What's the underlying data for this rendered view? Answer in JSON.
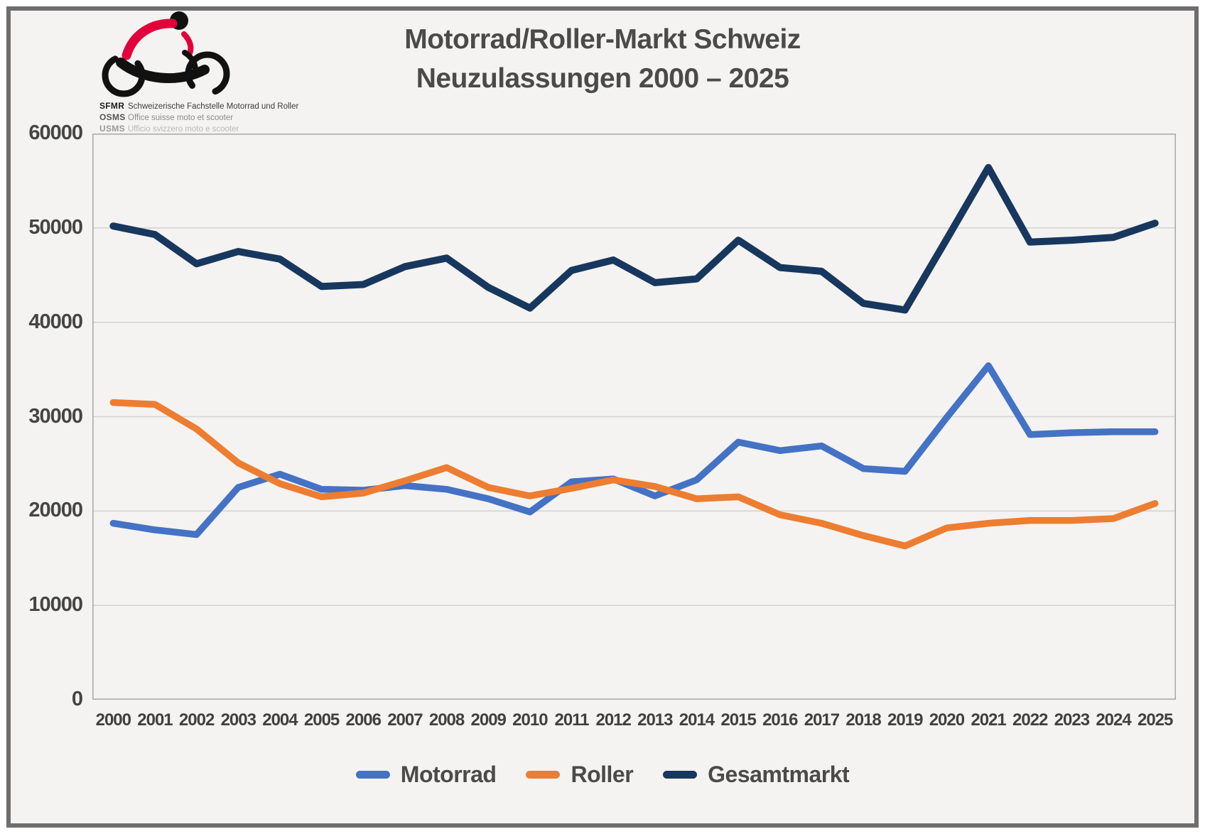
{
  "title": {
    "line1": "Motorrad/Roller-Markt Schweiz",
    "line2": "Neuzulassungen 2000 – 2025"
  },
  "logo": {
    "rows": [
      {
        "code": "SFMR",
        "desc": "Schweizerische Fachstelle Motorrad und Roller"
      },
      {
        "code": "OSMS",
        "desc": "Office suisse moto et scooter"
      },
      {
        "code": "USMS",
        "desc": "Ufficio svizzero moto e scooter"
      }
    ],
    "colors": {
      "red": "#e2003b",
      "black": "#111111"
    }
  },
  "chart_data": {
    "type": "line",
    "title": "Motorrad/Roller-Markt Schweiz — Neuzulassungen 2000 – 2025",
    "categories": [
      2000,
      2001,
      2002,
      2003,
      2004,
      2005,
      2006,
      2007,
      2008,
      2009,
      2010,
      2011,
      2012,
      2013,
      2014,
      2015,
      2016,
      2017,
      2018,
      2019,
      2020,
      2021,
      2022,
      2023,
      2024,
      2025
    ],
    "series": [
      {
        "name": "Motorrad",
        "color": "#4472C4",
        "values": [
          18700,
          18000,
          17500,
          22500,
          23900,
          22300,
          22200,
          22700,
          22300,
          21300,
          19900,
          23100,
          23400,
          21600,
          23300,
          27300,
          26400,
          26900,
          24500,
          24200,
          29900,
          35400,
          28100,
          28300,
          28400,
          28400
        ]
      },
      {
        "name": "Roller",
        "color": "#ED7D31",
        "values": [
          31500,
          31300,
          28700,
          25100,
          22900,
          21500,
          21900,
          23200,
          24600,
          22500,
          21600,
          22400,
          23300,
          22600,
          21300,
          21500,
          19600,
          18700,
          17400,
          16300,
          18200,
          18700,
          19000,
          19000,
          19200,
          20800
        ]
      },
      {
        "name": "Gesamtmarkt",
        "color": "#17375E",
        "values": [
          50200,
          49300,
          46200,
          47500,
          46700,
          43800,
          44000,
          45900,
          46800,
          43700,
          41500,
          45500,
          46600,
          44200,
          44600,
          48700,
          45800,
          45400,
          42000,
          41300,
          48800,
          56400,
          48500,
          48700,
          49000,
          50500
        ]
      }
    ],
    "xlabel": "",
    "ylabel": "",
    "ylim": [
      0,
      60000
    ],
    "ytick_interval": 10000,
    "yticks": [
      "0",
      "10000",
      "20000",
      "30000",
      "40000",
      "50000",
      "60000"
    ],
    "grid": "horizontal",
    "legend_position": "bottom",
    "plot_background": "#f4f3f1",
    "gridline_color": "#d4d4d4",
    "border_color": "#ababab"
  }
}
